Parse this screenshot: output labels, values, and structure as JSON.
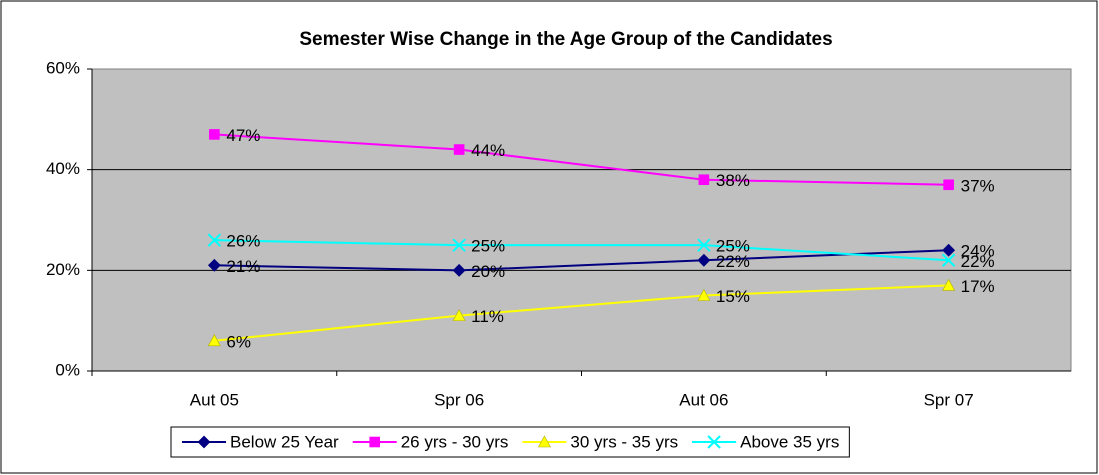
{
  "chart_data": {
    "type": "line",
    "title": "Semester Wise Change in the Age Group of the Candidates",
    "categories": [
      "Aut 05",
      "Spr 06",
      "Aut 06",
      "Spr 07"
    ],
    "series": [
      {
        "name": "Below 25 Year",
        "color": "#000080",
        "marker": "diamond",
        "values": [
          21,
          20,
          22,
          24
        ],
        "value_labels": [
          "21%",
          "20%",
          "22%",
          "24%"
        ]
      },
      {
        "name": "26 yrs - 30 yrs",
        "color": "#ff00ff",
        "marker": "square",
        "values": [
          47,
          44,
          38,
          37
        ],
        "value_labels": [
          "47%",
          "44%",
          "38%",
          "37%"
        ]
      },
      {
        "name": "30 yrs - 35 yrs",
        "color": "#ffff00",
        "marker": "triangle",
        "values": [
          6,
          11,
          15,
          17
        ],
        "value_labels": [
          "6%",
          "11%",
          "15%",
          "17%"
        ]
      },
      {
        "name": "Above 35 yrs",
        "color": "#00ffff",
        "marker": "x",
        "values": [
          26,
          25,
          25,
          22
        ],
        "value_labels": [
          "26%",
          "25%",
          "25%",
          "22%"
        ]
      }
    ],
    "ylim": [
      0,
      60
    ],
    "yticks": [
      {
        "value": 0,
        "label": "0%"
      },
      {
        "value": 20,
        "label": "20%"
      },
      {
        "value": 40,
        "label": "40%"
      },
      {
        "value": 60,
        "label": "60%"
      }
    ],
    "grid": true,
    "legend": "bottom"
  }
}
